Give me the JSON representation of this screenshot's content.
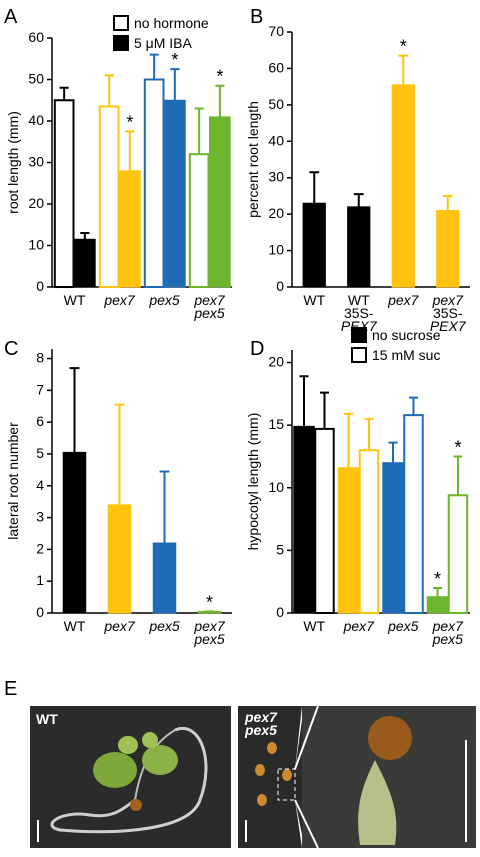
{
  "chart_data": [
    {
      "type": "bar",
      "panel": "A",
      "ylabel": "root length (mm)",
      "categories": [
        "WT",
        "pex7",
        "pex5",
        "pex7\npex5"
      ],
      "colors": [
        "#000000",
        "#ffc20e",
        "#1f6bb5",
        "#6cb52d"
      ],
      "series": [
        {
          "name": "no hormone",
          "style": "open",
          "color": "#000000",
          "values": [
            45,
            43.5,
            50,
            32
          ],
          "errors": [
            3,
            7.5,
            6,
            11
          ],
          "significance": [
            null,
            null,
            null,
            null
          ]
        },
        {
          "name": "5 μM IBA",
          "style": "filled",
          "color": "#000000",
          "values": [
            11.5,
            28,
            45,
            41
          ],
          "errors": [
            1.5,
            9.5,
            7.5,
            7.5
          ],
          "significance": [
            null,
            "*",
            "*",
            "*"
          ]
        }
      ],
      "ylim": [
        0,
        60
      ],
      "yticks": [
        0,
        10,
        20,
        30,
        40,
        50,
        60
      ],
      "legend": "upper-right"
    },
    {
      "type": "bar",
      "panel": "B",
      "ylabel": "percent root length",
      "categories": [
        "WT",
        "WT\n35S-\nPEX7",
        "pex7",
        "pex7\n35S-\nPEX7"
      ],
      "colors": [
        "#000000",
        "#000000",
        "#ffc20e",
        "#ffc20e"
      ],
      "values": [
        23,
        22,
        55.5,
        21
      ],
      "errors": [
        8.5,
        3.5,
        8,
        4
      ],
      "significance": [
        null,
        null,
        "*",
        null
      ],
      "ylim": [
        0,
        70
      ],
      "yticks": [
        0,
        10,
        20,
        30,
        40,
        50,
        60,
        70
      ]
    },
    {
      "type": "bar",
      "panel": "C",
      "ylabel": "lateral root number",
      "categories": [
        "WT",
        "pex7",
        "pex5",
        "pex7\npex5"
      ],
      "colors": [
        "#000000",
        "#ffc20e",
        "#1f6bb5",
        "#6cb52d"
      ],
      "values": [
        5.05,
        3.4,
        2.2,
        0.05
      ],
      "errors": [
        2.65,
        3.15,
        2.25,
        0
      ],
      "significance": [
        null,
        null,
        null,
        "*"
      ],
      "ylim": [
        0,
        8.3
      ],
      "yticks": [
        0,
        1,
        2,
        3,
        4,
        5,
        6,
        7,
        8
      ]
    },
    {
      "type": "bar",
      "panel": "D",
      "ylabel": "hypocotyl length (mm)",
      "categories": [
        "WT",
        "pex7",
        "pex5",
        "pex7\npex5"
      ],
      "colors": [
        "#000000",
        "#ffc20e",
        "#1f6bb5",
        "#6cb52d"
      ],
      "series": [
        {
          "name": "no sucrose",
          "style": "filled",
          "color": "#000000",
          "values": [
            14.9,
            11.6,
            12,
            1.3
          ],
          "errors": [
            4,
            4.3,
            1.6,
            0.7
          ],
          "significance": [
            null,
            null,
            null,
            "*"
          ]
        },
        {
          "name": "15 mM suc",
          "style": "open",
          "color": "#000000",
          "values": [
            14.7,
            13,
            15.8,
            9.4
          ],
          "errors": [
            2.9,
            2.5,
            1.4,
            3.1
          ],
          "significance": [
            null,
            null,
            null,
            "*"
          ]
        }
      ],
      "ylim": [
        0,
        21
      ],
      "yticks": [
        0,
        5,
        10,
        15,
        20
      ],
      "legend": "upper-right"
    }
  ],
  "photo_panel": {
    "panel": "E",
    "labels": [
      "WT",
      "pex7\npex5"
    ]
  }
}
